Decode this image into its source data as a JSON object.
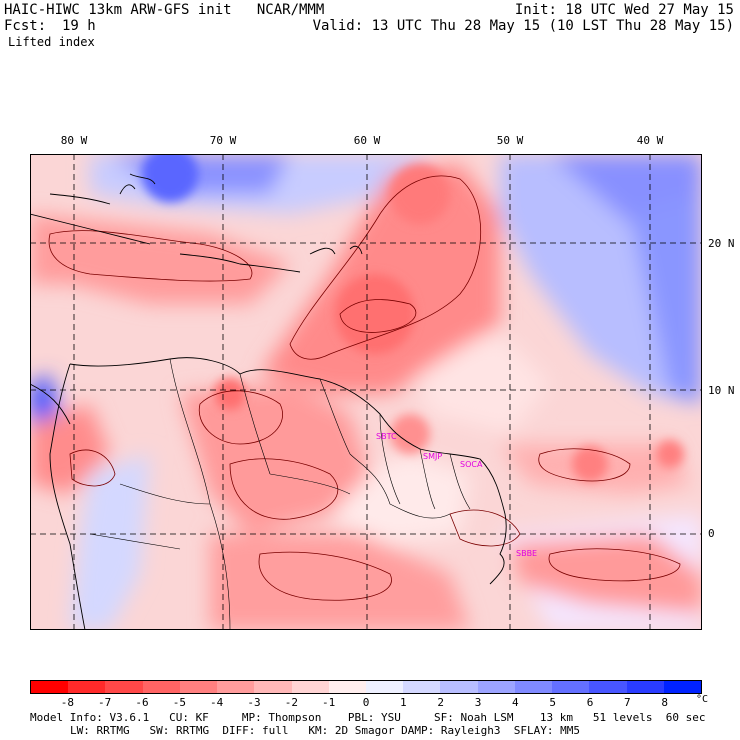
{
  "header": {
    "title": "HAIC-HIWC 13km ARW-GFS init   NCAR/MMM",
    "init": "Init: 18 UTC Wed 27 May 15",
    "fcst_label": "Fcst:",
    "fcst_value": "19 h",
    "valid": "Valid: 13 UTC Thu 28 May 15 (10 LST Thu 28 May 15)",
    "field": "Lifted index"
  },
  "map": {
    "lon_labels": [
      "80 W",
      "70 W",
      "60 W",
      "50 W",
      "40 W"
    ],
    "lat_labels": [
      "20 N",
      "10 N",
      "0"
    ],
    "city_labels": [
      "SBTC",
      "SMJP",
      "SOCA",
      "SBBE"
    ]
  },
  "colorbar": {
    "ticks": [
      "-8",
      "-7",
      "-6",
      "-5",
      "-4",
      "-3",
      "-2",
      "-1",
      "0",
      "1",
      "2",
      "3",
      "4",
      "5",
      "6",
      "7",
      "8"
    ],
    "unit": "°C",
    "colors": [
      "#ff0000",
      "#ff2a2a",
      "#ff4848",
      "#ff6464",
      "#ff8080",
      "#ff9c9c",
      "#ffb8b8",
      "#ffd4d4",
      "#ffeeee",
      "#eef0ff",
      "#d4d8ff",
      "#b8beff",
      "#9ca4ff",
      "#808aff",
      "#6470ff",
      "#4856ff",
      "#2a3cff",
      "#0022ff"
    ]
  },
  "footer": {
    "line1": "Model Info: V3.6.1   CU: KF     MP: Thompson    PBL: YSU     SF: Noah LSM    13 km   51 levels  60 sec",
    "line2": "LW: RRTMG   SW: RRTMG  DIFF: full   KM: 2D Smagor DAMP: Rayleigh3  SFLAY: MM5"
  }
}
